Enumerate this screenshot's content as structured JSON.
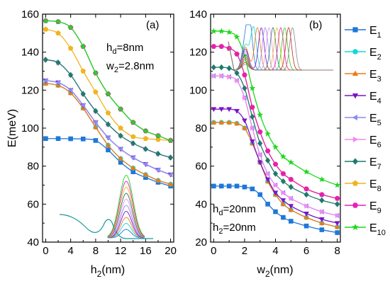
{
  "legend": [
    {
      "main": "E",
      "sub": "1",
      "color": "#1f77d8",
      "marker": "square"
    },
    {
      "main": "E",
      "sub": "2",
      "color": "#14d8d8",
      "marker": "circle"
    },
    {
      "main": "E",
      "sub": "3",
      "color": "#f07a14",
      "marker": "triangle"
    },
    {
      "main": "E",
      "sub": "4",
      "color": "#7a14c8",
      "marker": "triangle-down"
    },
    {
      "main": "E",
      "sub": "5",
      "color": "#8c8cf0",
      "marker": "triangle-left"
    },
    {
      "main": "E",
      "sub": "6",
      "color": "#f08cf0",
      "marker": "triangle-right"
    },
    {
      "main": "E",
      "sub": "7",
      "color": "#1e7a6e",
      "marker": "diamond"
    },
    {
      "main": "E",
      "sub": "8",
      "color": "#f0b41e",
      "marker": "pentagon"
    },
    {
      "main": "E",
      "sub": "9",
      "color": "#e61eb4",
      "marker": "hexagon"
    },
    {
      "main": "E",
      "sub": "10",
      "color": "#1ed81e",
      "marker": "star"
    }
  ],
  "chart_data": [
    {
      "type": "line",
      "panel_label": "(a)",
      "ylabel_main": "E(meV)",
      "xlabel_main": "h",
      "xlabel_sub": "2",
      "xlabel_unit": "(nm)",
      "annotation": [
        {
          "main": "h",
          "sub": "d",
          "rest": "=8nm"
        },
        {
          "main": "w",
          "sub": "2",
          "rest": "=2.8nm"
        }
      ],
      "xlim": [
        -0.5,
        20.5
      ],
      "ylim": [
        40,
        160
      ],
      "xticks": [
        0,
        4,
        8,
        12,
        16,
        20
      ],
      "yticks": [
        40,
        60,
        80,
        100,
        120,
        140,
        160
      ],
      "x": [
        0,
        2,
        4,
        6,
        8,
        10,
        12,
        14,
        16,
        18,
        20
      ],
      "series": [
        {
          "values": [
            94.5,
            94.5,
            94.4,
            94.3,
            93.5,
            88.5,
            82,
            77,
            74,
            71.5,
            69.5
          ]
        },
        {
          "values": [
            123.5,
            122.5,
            118.5,
            110.5,
            100.5,
            91,
            84,
            79,
            75.5,
            72.5,
            70.5
          ]
        },
        {
          "values": [
            123.5,
            122.5,
            118.5,
            110.5,
            100.5,
            91,
            84,
            79,
            75.5,
            72.5,
            70.5
          ]
        },
        {
          "values": [
            125,
            124,
            120,
            112,
            103,
            95,
            89,
            84.5,
            81,
            78,
            75.5
          ]
        },
        {
          "values": [
            125,
            124,
            120,
            112,
            103,
            95,
            89,
            84.5,
            81,
            78,
            75.5
          ]
        },
        {
          "values": [
            136,
            134.5,
            128,
            118,
            109,
            102,
            96,
            92,
            89,
            86.5,
            84.5
          ]
        },
        {
          "values": [
            136,
            134.5,
            128,
            118,
            109,
            102,
            96,
            92,
            89,
            86.5,
            84.5
          ]
        },
        {
          "values": [
            152,
            150,
            142,
            130,
            119,
            108,
            100,
            95.5,
            94.5,
            94,
            93.5
          ]
        },
        {
          "values": [
            156.5,
            156,
            153,
            143,
            129,
            118,
            110,
            103,
            98.5,
            96,
            93.5
          ]
        },
        {
          "values": [
            156.5,
            156,
            153,
            143,
            129,
            118,
            110,
            103,
            98.5,
            96,
            93.5
          ]
        }
      ]
    },
    {
      "type": "line",
      "panel_label": "(b)",
      "xlabel_main": "w",
      "xlabel_sub": "2",
      "xlabel_unit": "(nm)",
      "annotation": [
        {
          "main": "h",
          "sub": "d",
          "rest": "=20nm"
        },
        {
          "main": "h",
          "sub": "2",
          "rest": "=20nm"
        }
      ],
      "xlim": [
        -0.2,
        8.2
      ],
      "ylim": [
        20,
        140
      ],
      "xticks": [
        0,
        2,
        4,
        6,
        8
      ],
      "yticks": [
        20,
        40,
        60,
        80,
        100,
        120,
        140
      ],
      "x": [
        0,
        0.5,
        1,
        1.5,
        2,
        2.5,
        3,
        3.5,
        4,
        4.5,
        5,
        6,
        7,
        8
      ],
      "series": [
        {
          "values": [
            49.5,
            49.5,
            49.5,
            49.5,
            49,
            48,
            45,
            40,
            36,
            33,
            31,
            28.5,
            26.5,
            25
          ]
        },
        {
          "values": [
            83,
            83,
            83,
            82.5,
            80,
            72,
            62,
            52,
            45,
            40,
            37,
            33,
            30,
            28
          ]
        },
        {
          "values": [
            83,
            83,
            83,
            82.5,
            80,
            72,
            62,
            52,
            45,
            40,
            37,
            33,
            30,
            28
          ]
        },
        {
          "values": [
            90,
            90,
            90,
            89,
            84,
            73,
            62,
            53,
            46,
            42,
            39,
            35,
            32,
            30
          ]
        },
        {
          "values": [
            107.5,
            107.5,
            107,
            105,
            96,
            80,
            66,
            56,
            50,
            46,
            43,
            39,
            36,
            34
          ]
        },
        {
          "values": [
            107.5,
            107.5,
            107,
            105,
            96,
            80,
            66,
            56,
            50,
            46,
            43,
            39,
            36,
            34
          ]
        },
        {
          "values": [
            112,
            112,
            111.5,
            109,
            101,
            86,
            72,
            63,
            56,
            52,
            49,
            45,
            42,
            40
          ]
        },
        {
          "values": [
            123,
            123,
            122,
            119,
            108,
            91,
            78,
            68,
            61,
            56,
            53,
            48,
            45,
            43
          ]
        },
        {
          "values": [
            123,
            123,
            122,
            119,
            108,
            91,
            78,
            68,
            61,
            56,
            53,
            48,
            45,
            43
          ]
        },
        {
          "values": [
            131,
            131,
            130.5,
            128,
            118,
            101,
            87,
            77,
            70,
            65,
            62,
            57,
            53,
            50
          ]
        }
      ]
    }
  ]
}
